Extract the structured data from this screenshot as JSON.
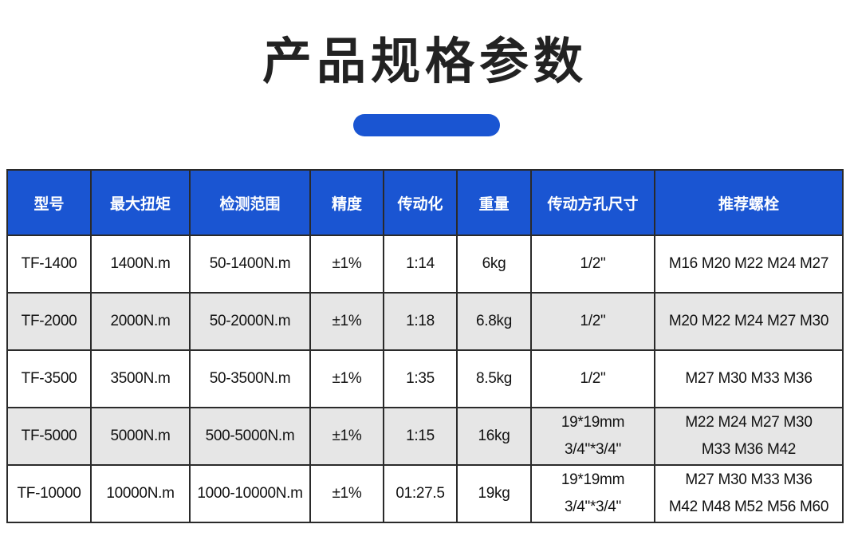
{
  "header": {
    "title": "产品规格参数"
  },
  "table": {
    "columns": [
      "型号",
      "最大扭矩",
      "检测范围",
      "精度",
      "传动化",
      "重量",
      "传动方孔尺寸",
      "推荐螺栓"
    ],
    "rows": [
      [
        "TF-1400",
        "1400N.m",
        "50-1400N.m",
        "±1%",
        "1:14",
        "6kg",
        "1/2\"",
        "M16 M20 M22 M24 M27"
      ],
      [
        "TF-2000",
        "2000N.m",
        "50-2000N.m",
        "±1%",
        "1:18",
        "6.8kg",
        "1/2\"",
        "M20 M22 M24 M27 M30"
      ],
      [
        "TF-3500",
        "3500N.m",
        "50-3500N.m",
        "±1%",
        "1:35",
        "8.5kg",
        "1/2\"",
        "M27 M30 M33 M36"
      ],
      [
        "TF-5000",
        "5000N.m",
        "500-5000N.m",
        "±1%",
        "1:15",
        "16kg",
        "19*19mm\n3/4\"*3/4\"",
        "M22 M24 M27 M30\nM33 M36 M42"
      ],
      [
        "TF-10000",
        "10000N.m",
        "1000-10000N.m",
        "±1%",
        "01:27.5",
        "19kg",
        "19*19mm\n3/4\"*3/4\"",
        "M27 M30 M33 M36\nM42 M48 M52 M56 M60"
      ]
    ]
  }
}
